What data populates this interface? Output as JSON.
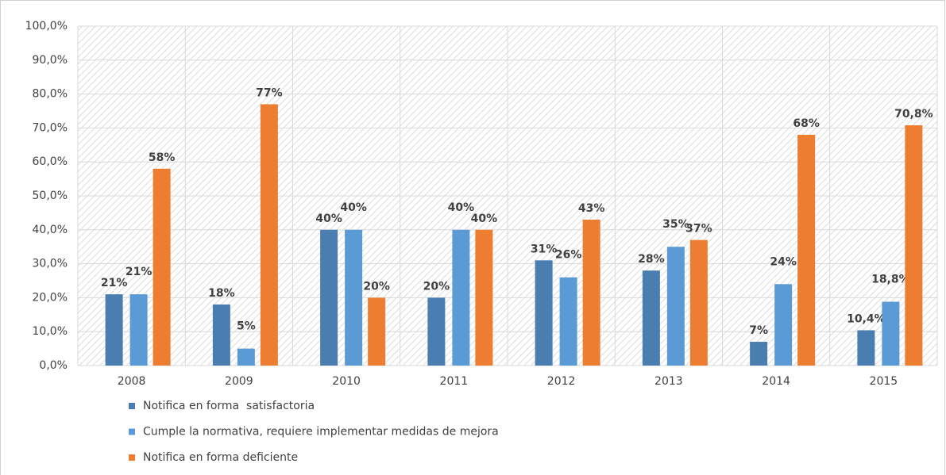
{
  "chart_data": {
    "type": "bar",
    "categories": [
      "2008",
      "2009",
      "2010",
      "2011",
      "2012",
      "2013",
      "2014",
      "2015"
    ],
    "series": [
      {
        "name": "Notifica en forma  satisfactoria",
        "color": "#4a7eb0",
        "values": [
          21,
          18,
          40,
          20,
          31,
          28,
          7,
          10.4
        ],
        "value_labels": [
          "21%",
          "18%",
          "40%",
          "20%",
          "31%",
          "28%",
          "7%",
          "10,4%"
        ]
      },
      {
        "name": "Cumple la normativa, requiere implementar medidas de mejora",
        "color": "#5b9bd5",
        "values": [
          21,
          5,
          40,
          40,
          26,
          35,
          24,
          18.8
        ],
        "value_labels": [
          "21%",
          "5%",
          "40%",
          "40%",
          "26%",
          "35%",
          "24%",
          "18,8%"
        ]
      },
      {
        "name": "Notifica en forma deficiente",
        "color": "#ed7d31",
        "values": [
          58,
          77,
          20,
          40,
          43,
          37,
          68,
          70.8
        ],
        "value_labels": [
          "58%",
          "77%",
          "20%",
          "40%",
          "43%",
          "37%",
          "68%",
          "70,8%"
        ]
      }
    ],
    "ylim": [
      0,
      100
    ],
    "yticks": [
      {
        "value": 0,
        "label": "0,0%"
      },
      {
        "value": 10,
        "label": "10,0%"
      },
      {
        "value": 20,
        "label": "20,0%"
      },
      {
        "value": 30,
        "label": "30,0%"
      },
      {
        "value": 40,
        "label": "40,0%"
      },
      {
        "value": 50,
        "label": "50,0%"
      },
      {
        "value": 60,
        "label": "60,0%"
      },
      {
        "value": 70,
        "label": "70,0%"
      },
      {
        "value": 80,
        "label": "80,0%"
      },
      {
        "value": 90,
        "label": "90,0%"
      },
      {
        "value": 100,
        "label": "100,0%"
      }
    ],
    "grid": true
  }
}
